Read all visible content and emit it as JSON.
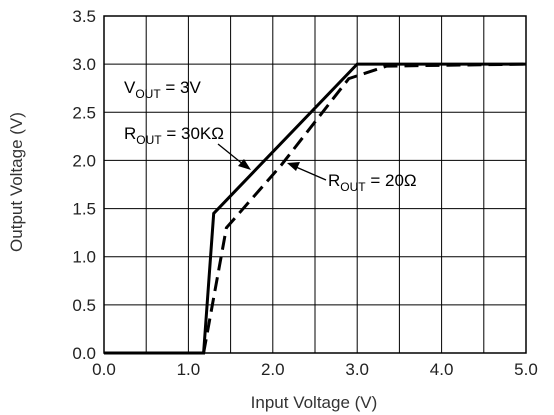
{
  "chart_data": {
    "type": "line",
    "xlabel": "Input Voltage (V)",
    "ylabel": "Output Voltage (V)",
    "xlim": [
      0,
      5
    ],
    "ylim": [
      0,
      3.5
    ],
    "xticks": [
      "0.0",
      "1.0",
      "2.0",
      "3.0",
      "4.0",
      "5.0"
    ],
    "yticks": [
      "0.0",
      "0.5",
      "1.0",
      "1.5",
      "2.0",
      "2.5",
      "3.0",
      "3.5"
    ],
    "x_grid_step": 0.5,
    "y_grid_step": 0.5,
    "grid": true,
    "series": [
      {
        "name": "ROUT = 30KΩ",
        "style": "solid",
        "color": "#000000",
        "points": [
          [
            0,
            0
          ],
          [
            1.18,
            0
          ],
          [
            1.3,
            1.45
          ],
          [
            3.0,
            3.0
          ],
          [
            5.0,
            3.0
          ]
        ]
      },
      {
        "name": "ROUT = 20Ω",
        "style": "dashed",
        "color": "#000000",
        "points": [
          [
            1.18,
            0
          ],
          [
            1.45,
            1.3
          ],
          [
            2.1,
            1.95
          ],
          [
            2.9,
            2.85
          ],
          [
            3.35,
            2.98
          ],
          [
            5.0,
            3.0
          ]
        ]
      }
    ],
    "annotations": {
      "vout": {
        "main": "V",
        "sub": "OUT",
        "rest": " = 3V"
      },
      "rout_solid": {
        "main": "R",
        "sub": "OUT",
        "rest": " = 30KΩ"
      },
      "rout_dashed": {
        "main": "R",
        "sub": "OUT",
        "rest": " = 20Ω"
      }
    }
  }
}
